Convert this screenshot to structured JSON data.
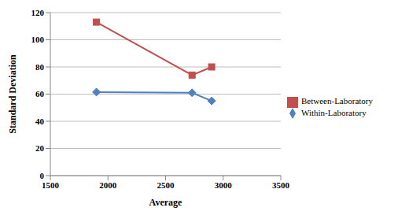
{
  "chart_data": {
    "type": "line",
    "x_label": "Average",
    "y_label": "Standard Deviation",
    "x": [
      1900,
      2730,
      2900
    ],
    "series": [
      {
        "name": "Between-Laboratory",
        "color": "#C0504D",
        "marker": "square",
        "values": [
          113,
          74,
          80
        ]
      },
      {
        "name": "Within-Laboratory",
        "color": "#4F81BD",
        "marker": "diamond",
        "values": [
          61.5,
          61,
          55
        ]
      }
    ],
    "xlim": [
      1500,
      3500
    ],
    "xticks": [
      1500,
      2000,
      2500,
      3000,
      3500
    ],
    "ylim": [
      0,
      120
    ],
    "yticks": [
      0,
      20,
      40,
      60,
      80,
      100,
      120
    ],
    "grid": true,
    "legend": "right"
  }
}
